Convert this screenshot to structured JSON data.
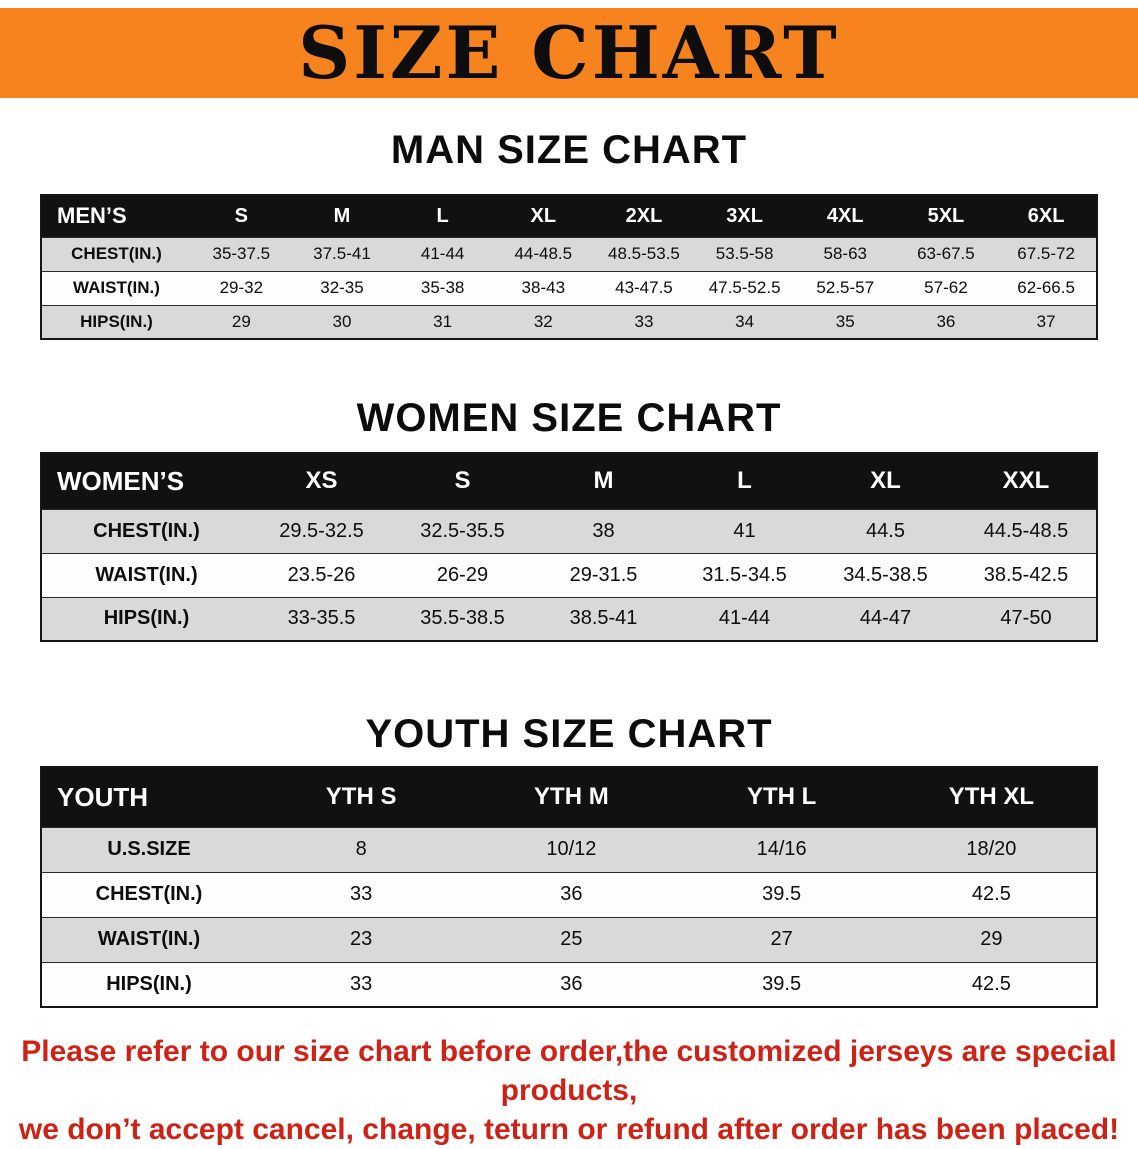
{
  "banner": {
    "title": "SIZE CHART",
    "bg_color": "#F6831D"
  },
  "sections": [
    {
      "id": "men",
      "heading": "MAN SIZE CHART",
      "table": {
        "header": [
          "MEN’S",
          "S",
          "M",
          "L",
          "XL",
          "2XL",
          "3XL",
          "4XL",
          "5XL",
          "6XL"
        ],
        "rows": [
          [
            "CHEST(IN.)",
            "35-37.5",
            "37.5-41",
            "41-44",
            "44-48.5",
            "48.5-53.5",
            "53.5-58",
            "58-63",
            "63-67.5",
            "67.5-72"
          ],
          [
            "WAIST(IN.)",
            "29-32",
            "32-35",
            "35-38",
            "38-43",
            "43-47.5",
            "47.5-52.5",
            "52.5-57",
            "57-62",
            "62-66.5"
          ],
          [
            "HIPS(IN.)",
            "29",
            "30",
            "31",
            "32",
            "33",
            "34",
            "35",
            "36",
            "37"
          ]
        ]
      }
    },
    {
      "id": "women",
      "heading": "WOMEN SIZE CHART",
      "table": {
        "header": [
          "WOMEN’S",
          "XS",
          "S",
          "M",
          "L",
          "XL",
          "XXL"
        ],
        "rows": [
          [
            "CHEST(IN.)",
            "29.5-32.5",
            "32.5-35.5",
            "38",
            "41",
            "44.5",
            "44.5-48.5"
          ],
          [
            "WAIST(IN.)",
            "23.5-26",
            "26-29",
            "29-31.5",
            "31.5-34.5",
            "34.5-38.5",
            "38.5-42.5"
          ],
          [
            "HIPS(IN.)",
            "33-35.5",
            "35.5-38.5",
            "38.5-41",
            "41-44",
            "44-47",
            "47-50"
          ]
        ]
      }
    },
    {
      "id": "youth",
      "heading": "YOUTH SIZE CHART",
      "table": {
        "header": [
          "YOUTH",
          "YTH S",
          "YTH M",
          "YTH L",
          "YTH XL"
        ],
        "rows": [
          [
            "U.S.SIZE",
            "8",
            "10/12",
            "14/16",
            "18/20"
          ],
          [
            "CHEST(IN.)",
            "33",
            "36",
            "39.5",
            "42.5"
          ],
          [
            "WAIST(IN.)",
            "23",
            "25",
            "27",
            "29"
          ],
          [
            "HIPS(IN.)",
            "33",
            "36",
            "39.5",
            "42.5"
          ]
        ]
      }
    }
  ],
  "disclaimer": {
    "color": "#cf2217",
    "lines": [
      "Please refer to our size chart before order,the customized jerseys are special products,",
      "we don’t accept cancel, change, teturn or refund after order has been placed!"
    ]
  },
  "colors": {
    "header_bg": "#111111",
    "row_alt_bg": "#d9d9d9",
    "row_bg": "#fdfdfd"
  }
}
